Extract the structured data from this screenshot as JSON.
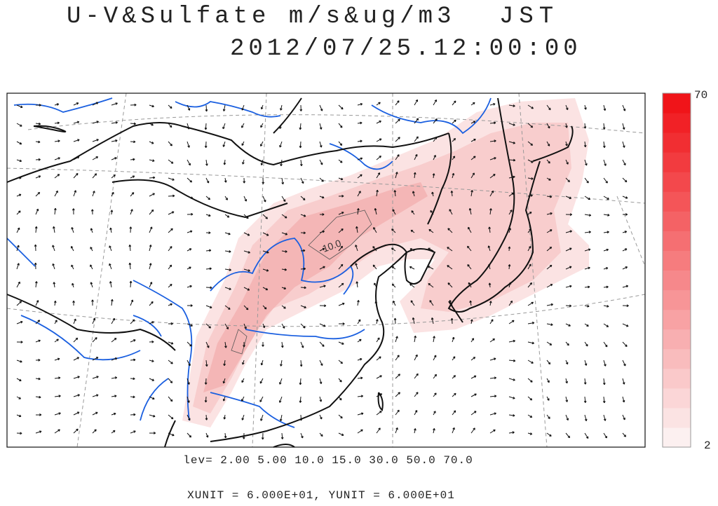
{
  "header": {
    "title": "U-V&Sulfate m/s&ug/m3",
    "zone": "JST",
    "datetime": "2012/07/25.12:00:00"
  },
  "map": {
    "contour_label": "10.0"
  },
  "colorbar": {
    "max_label": "70",
    "min_label": "2"
  },
  "footer": {
    "levels": "lev= 2.00 5.00 10.0 15.0 30.0 50.0 70.0",
    "units": "XUNIT = 6.000E+01, YUNIT = 6.000E+01"
  }
}
